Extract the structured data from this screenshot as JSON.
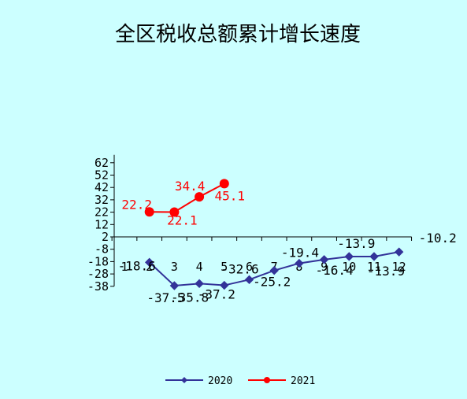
{
  "chart_data": {
    "type": "line",
    "title": "全区税收总额累计增长速度",
    "categories": [
      "1",
      "2",
      "3",
      "4",
      "5",
      "6",
      "7",
      "8",
      "9",
      "10",
      "11",
      "12"
    ],
    "yticks": [
      62,
      52,
      42,
      32,
      22,
      12,
      2,
      -8,
      -18,
      -28,
      -38
    ],
    "ylim": [
      -38,
      62
    ],
    "grid": false,
    "legend_position": "bottom",
    "series": [
      {
        "name": "2020",
        "color": "#333399",
        "marker": "diamond",
        "values": [
          null,
          -18.6,
          -37.5,
          -35.8,
          -37.2,
          -32.6,
          -25.2,
          -19.4,
          -16.4,
          -13.9,
          -13.9,
          -10.2
        ],
        "labels": [
          null,
          "-18.6",
          "-37.5",
          "-35.8",
          "-37.2",
          "-32.6",
          "-25.2",
          "-19.4",
          "-16.4",
          "-13.9",
          "-13.9",
          "-10.2"
        ]
      },
      {
        "name": "2021",
        "color": "#ff0000",
        "marker": "circle",
        "values": [
          null,
          22.2,
          22.1,
          34.4,
          45.1,
          null,
          null,
          null,
          null,
          null,
          null,
          null
        ],
        "labels": [
          null,
          "22.2",
          "22.1",
          "34.4",
          "45.1",
          null,
          null,
          null,
          null,
          null,
          null,
          null
        ]
      }
    ]
  }
}
